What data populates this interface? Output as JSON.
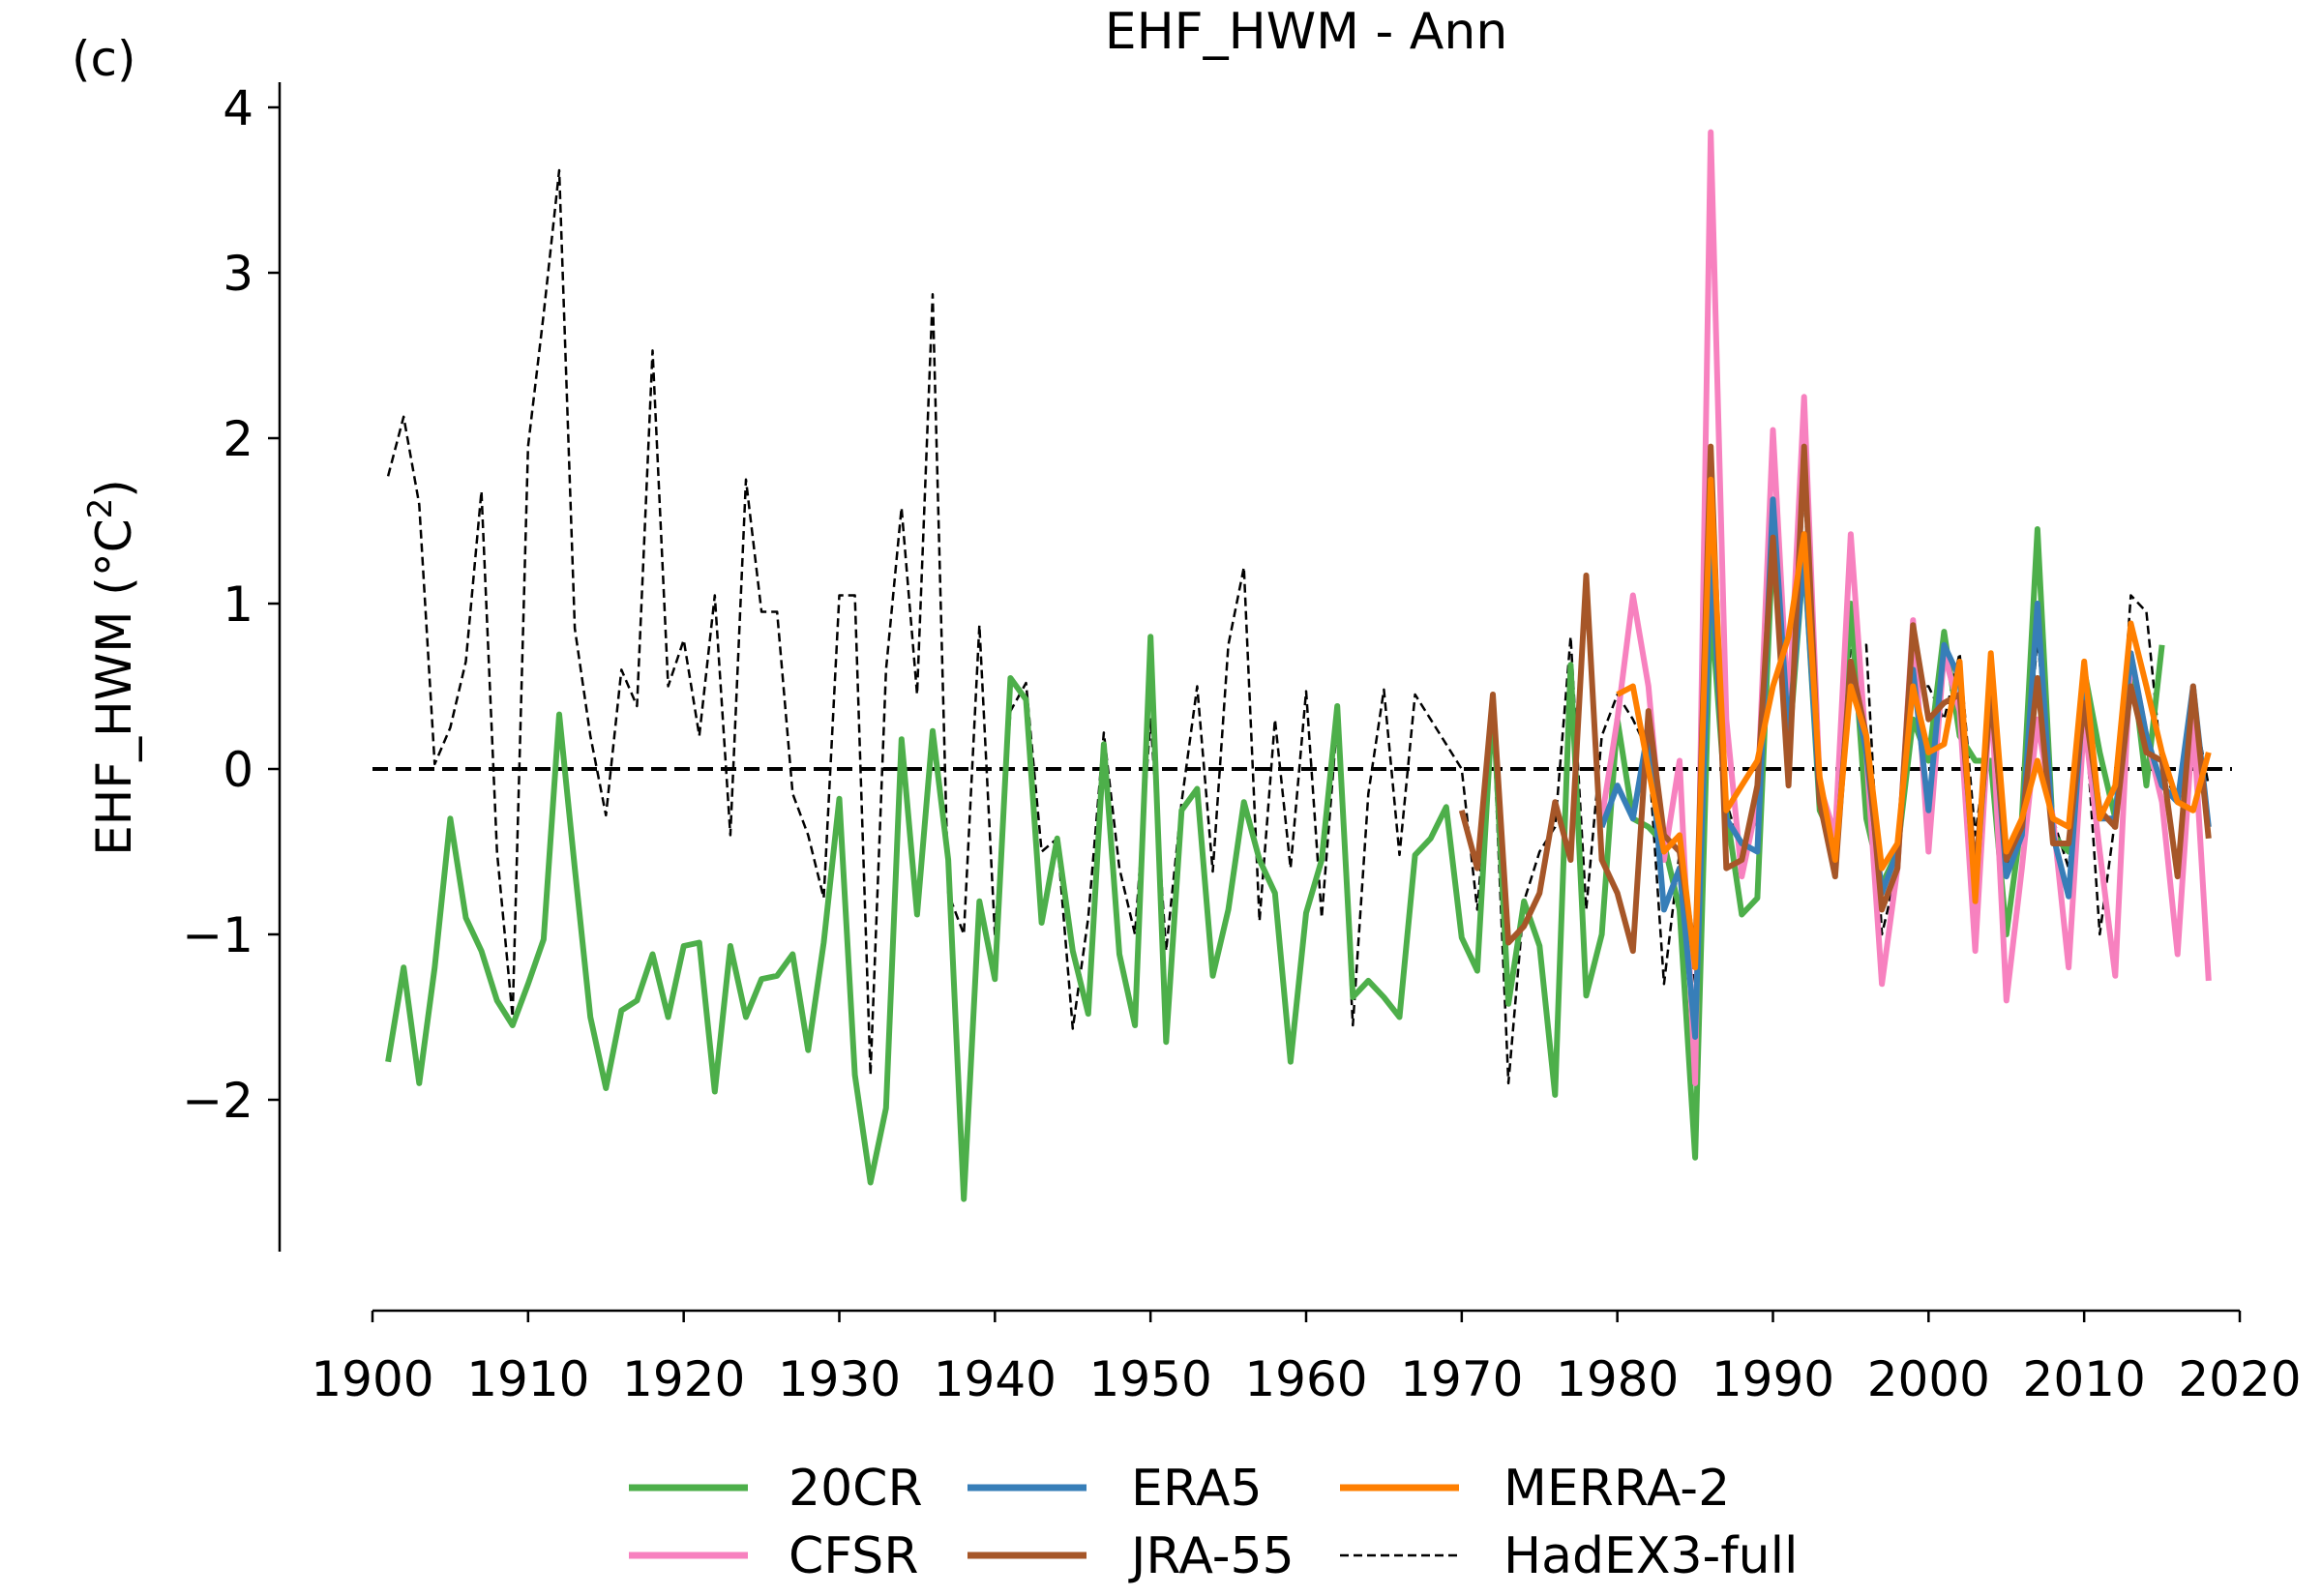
{
  "panel_label": "(c)",
  "chart_data": {
    "type": "line",
    "title": "EHF_HWM - Ann",
    "xlabel": "",
    "ylabel": "EHF_HWM (°C²)",
    "ylabel_main": "EHF_HWM (°C",
    "ylabel_sup": "2",
    "ylabel_close": ")",
    "xlim": [
      1900,
      2020
    ],
    "ylim": [
      -2.9,
      4.15
    ],
    "xticks": [
      1900,
      1910,
      1920,
      1930,
      1940,
      1950,
      1960,
      1970,
      1980,
      1990,
      2000,
      2010,
      2020
    ],
    "yticks": [
      -2,
      -1,
      0,
      1,
      2,
      3,
      4
    ],
    "ytick_labels": [
      "−2",
      "−1",
      "0",
      "1",
      "2",
      "3",
      "4"
    ],
    "grid": false,
    "legend_position": "bottom-center",
    "reference_line": 0,
    "series": [
      {
        "name": "HadEX3-full",
        "color": "#000000",
        "dashed": true,
        "start": 1901,
        "values": [
          1.77,
          2.13,
          1.6,
          0.03,
          0.25,
          0.65,
          1.68,
          -0.5,
          -1.5,
          1.95,
          2.75,
          3.62,
          0.85,
          0.2,
          -0.28,
          0.6,
          0.38,
          2.53,
          0.5,
          0.78,
          0.2,
          1.05,
          -0.4,
          1.75,
          0.95,
          0.95,
          -0.15,
          -0.4,
          -0.78,
          1.05,
          1.05,
          -1.85,
          0.6,
          1.58,
          0.45,
          2.87,
          -0.75,
          -1.0,
          0.87,
          -1.0,
          0.35,
          0.52,
          -0.5,
          -0.42,
          -1.57,
          -0.9,
          0.22,
          -0.6,
          -1.0,
          0.3,
          -1.1,
          -0.2,
          0.5,
          -0.62,
          0.75,
          1.22,
          -0.92,
          0.3,
          -0.6,
          0.47,
          -0.9,
          0.3,
          -1.55,
          -0.15,
          0.48,
          -0.52,
          0.45,
          0.3,
          0.15,
          0.0,
          -0.85,
          0.3,
          -1.9,
          -0.8,
          -0.5,
          -0.35,
          0.8,
          -0.85,
          0.2,
          0.45,
          0.3,
          0.1,
          -1.3,
          -0.5,
          -1.3,
          1.4,
          -0.2,
          -0.5,
          -0.3,
          1.3,
          0.0,
          1.7,
          -0.2,
          -0.6,
          0.75,
          0.75,
          -1.0,
          -0.6,
          0.5,
          0.5,
          0.3,
          0.7,
          -0.4,
          0.3,
          -0.6,
          -0.4,
          0.8,
          -0.3,
          -0.6,
          0.4,
          -1.0,
          -0.3,
          1.05,
          0.95,
          0.0,
          -0.2,
          0.4,
          -0.1
        ]
      },
      {
        "name": "20CR",
        "color": "#4daf4a",
        "dashed": false,
        "start": 1901,
        "values": [
          -1.77,
          -1.2,
          -1.9,
          -1.2,
          -0.3,
          -0.9,
          -1.1,
          -1.4,
          -1.55,
          -1.3,
          -1.03,
          0.33,
          -0.6,
          -1.5,
          -1.93,
          -1.46,
          -1.4,
          -1.12,
          -1.5,
          -1.07,
          -1.05,
          -1.95,
          -1.07,
          -1.5,
          -1.27,
          -1.25,
          -1.12,
          -1.7,
          -1.05,
          -0.18,
          -1.85,
          -2.5,
          -2.05,
          0.18,
          -0.88,
          0.23,
          -0.55,
          -2.6,
          -0.8,
          -1.27,
          0.55,
          0.42,
          -0.93,
          -0.42,
          -1.1,
          -1.48,
          0.15,
          -1.12,
          -1.55,
          0.8,
          -1.65,
          -0.25,
          -0.12,
          -1.25,
          -0.85,
          -0.2,
          -0.55,
          -0.75,
          -1.77,
          -0.87,
          -0.55,
          0.38,
          -1.38,
          -1.28,
          -1.38,
          -1.5,
          -0.52,
          -0.42,
          -0.23,
          -1.02,
          -1.22,
          0.42,
          -1.42,
          -0.8,
          -1.07,
          -1.97,
          0.63,
          -1.37,
          -1.0,
          0.3,
          -0.3,
          -0.35,
          -0.45,
          -0.85,
          -2.35,
          1.0,
          -0.25,
          -0.88,
          -0.78,
          1.4,
          0.1,
          1.3,
          -0.25,
          -0.45,
          1.0,
          -0.3,
          -0.7,
          -0.5,
          0.3,
          0.05,
          0.83,
          0.2,
          0.05,
          0.05,
          -1.0,
          -0.3,
          1.45,
          -0.4,
          -0.5,
          0.6,
          0.1,
          -0.3,
          0.7,
          -0.1,
          0.75
        ]
      },
      {
        "name": "CFSR",
        "color": "#f781bf",
        "dashed": false,
        "start": 1979,
        "values": [
          -0.3,
          0.3,
          1.05,
          0.5,
          -0.55,
          0.05,
          -1.9,
          3.85,
          0.3,
          -0.65,
          -0.2,
          2.05,
          0.3,
          2.25,
          -0.1,
          -0.4,
          1.42,
          0.1,
          -1.3,
          -0.6,
          0.9,
          -0.5,
          0.7,
          0.35,
          -1.1,
          0.5,
          -1.4,
          -0.6,
          0.3,
          -0.3,
          -1.2,
          0.3,
          -0.5,
          -1.25,
          0.7,
          0.2,
          -0.2,
          -1.12,
          0.3,
          -1.28
        ]
      },
      {
        "name": "ERA5",
        "color": "#377eb8",
        "dashed": false,
        "start": 1979,
        "values": [
          -0.35,
          -0.1,
          -0.3,
          0.25,
          -0.85,
          -0.6,
          -1.62,
          1.3,
          -0.3,
          -0.45,
          -0.5,
          1.63,
          0.2,
          1.3,
          -0.2,
          -0.6,
          0.6,
          0.1,
          -0.75,
          -0.5,
          0.6,
          -0.25,
          0.75,
          0.55,
          -0.75,
          0.55,
          -0.65,
          -0.4,
          1.0,
          -0.4,
          -0.77,
          0.5,
          -0.3,
          -0.3,
          0.7,
          0.2,
          -0.1,
          -0.2,
          0.5,
          -0.35
        ]
      },
      {
        "name": "JRA-55",
        "color": "#a65628",
        "dashed": false,
        "start": 1970,
        "values": [
          -0.25,
          -0.6,
          0.45,
          -1.05,
          -0.95,
          -0.75,
          -0.2,
          -0.55,
          1.17,
          -0.55,
          -0.75,
          -1.1,
          0.35,
          -0.4,
          -0.5,
          -1.15,
          1.95,
          -0.6,
          -0.55,
          -0.1,
          1.4,
          -0.1,
          1.95,
          -0.2,
          -0.65,
          0.65,
          0.2,
          -0.85,
          -0.6,
          0.87,
          0.3,
          0.4,
          0.45,
          -0.65,
          0.45,
          -0.55,
          -0.35,
          0.55,
          -0.45,
          -0.45,
          0.4,
          -0.25,
          -0.35,
          0.5,
          0.1,
          0.05,
          -0.65,
          0.5,
          -0.42
        ]
      },
      {
        "name": "MERRA-2",
        "color": "#ff7f00",
        "dashed": false,
        "start": 1980,
        "values": [
          0.45,
          0.5,
          0.0,
          -0.5,
          -0.4,
          -1.2,
          1.75,
          -0.25,
          -0.1,
          0.05,
          0.5,
          0.8,
          1.42,
          -0.05,
          -0.55,
          0.5,
          0.2,
          -0.6,
          -0.45,
          0.5,
          0.1,
          0.15,
          0.65,
          -0.8,
          0.7,
          -0.5,
          -0.3,
          0.05,
          -0.3,
          -0.35,
          0.65,
          -0.3,
          -0.1,
          0.88,
          0.5,
          0.1,
          -0.2,
          -0.25,
          0.1
        ]
      }
    ],
    "legend": [
      {
        "name": "20CR",
        "color": "#4daf4a",
        "dashed": false
      },
      {
        "name": "CFSR",
        "color": "#f781bf",
        "dashed": false
      },
      {
        "name": "ERA5",
        "color": "#377eb8",
        "dashed": false
      },
      {
        "name": "JRA-55",
        "color": "#a65628",
        "dashed": false
      },
      {
        "name": "MERRA-2",
        "color": "#ff7f00",
        "dashed": false
      },
      {
        "name": "HadEX3-full",
        "color": "#000000",
        "dashed": true
      }
    ]
  }
}
